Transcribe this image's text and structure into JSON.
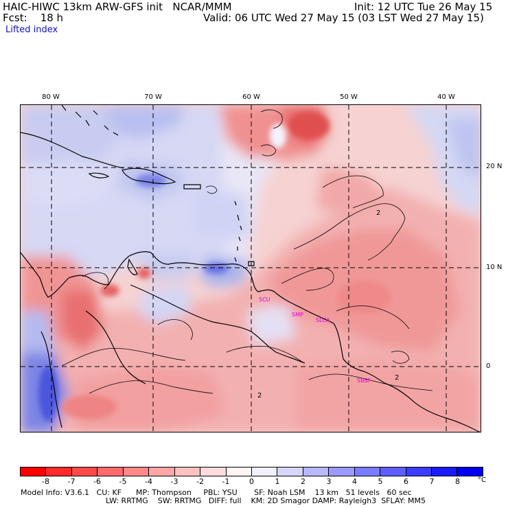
{
  "header": {
    "title": "HAIC-HIWC 13km ARW-GFS init   NCAR/MMM",
    "init": "Init: 12 UTC Tue 26 May 15",
    "fcst": "Fcst:    18 h",
    "valid": "Valid: 06 UTC Wed 27 May 15 (03 LST Wed 27 May 15)",
    "field": "Lifted index"
  },
  "axes": {
    "lon_labels": [
      "80 W",
      "70 W",
      "60 W",
      "50 W",
      "40 W"
    ],
    "lat_labels": [
      "20 N",
      "10 N",
      "0"
    ]
  },
  "stations": [
    "SCU",
    "SMP",
    "SLCA",
    "SBBF"
  ],
  "contour_labels": [
    "2",
    "2",
    "2"
  ],
  "colorbar": {
    "colors": [
      "#ff0000",
      "#ff2a2a",
      "#ff4a4a",
      "#ff6a6a",
      "#ff8888",
      "#ffa6a6",
      "#ffc2c2",
      "#ffdcdc",
      "#fff4f4",
      "#f0f0ff",
      "#d6d6ff",
      "#b8b8ff",
      "#9a9aff",
      "#7c7cff",
      "#5e5eff",
      "#3c3cff",
      "#1a1aff",
      "#0000ee"
    ],
    "ticks": [
      "-8",
      "-7",
      "-6",
      "-5",
      "-4",
      "-3",
      "-2",
      "-1",
      "0",
      "1",
      "2",
      "3",
      "4",
      "5",
      "6",
      "7",
      "8"
    ],
    "unit": "°C"
  },
  "footer": {
    "line1": "Model Info: V3.6.1   CU: KF      MP: Thompson     PBL: YSU       SF: Noah LSM    13 km   51 levels   60 sec",
    "line2": "LW: RRTMG    SW: RRTMG   DIFF: full    KM: 2D Smagor DAMP: Rayleigh3  SFLAY: MM5"
  }
}
